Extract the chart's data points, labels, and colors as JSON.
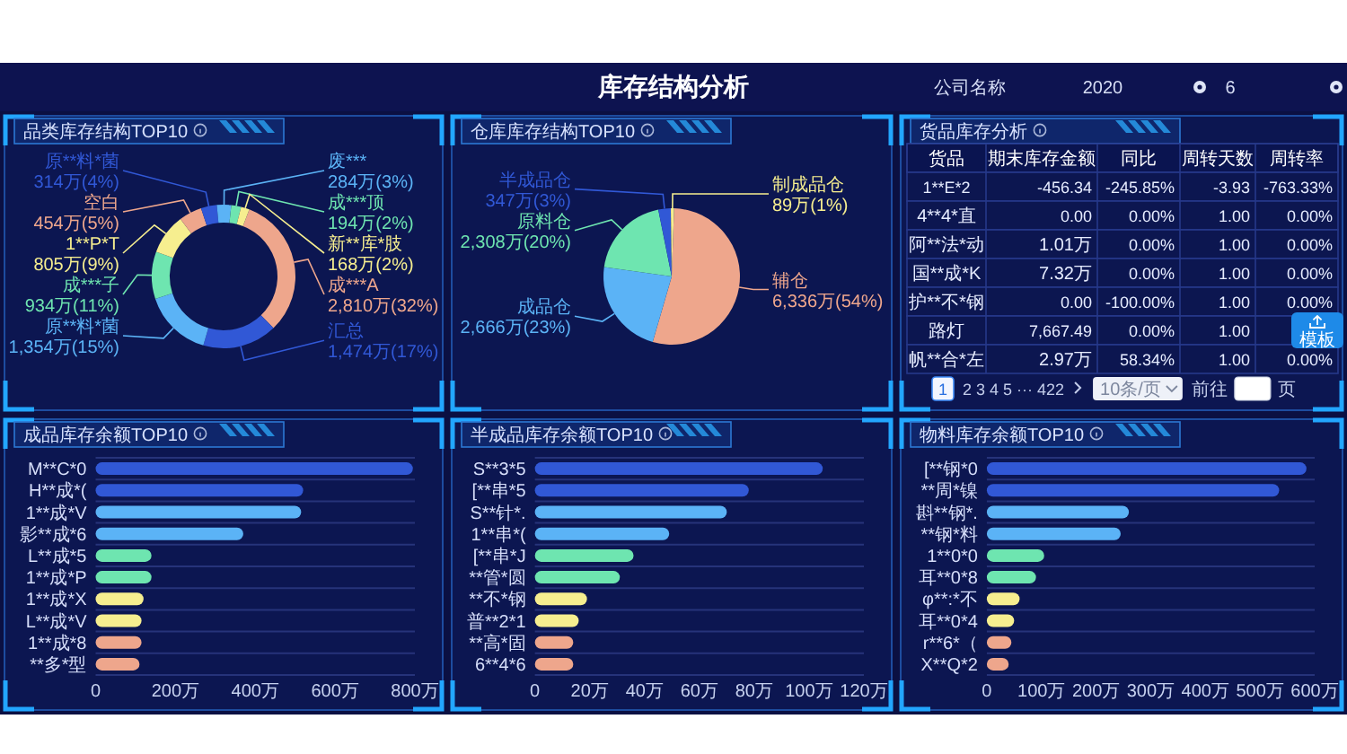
{
  "chart_data": [
    {
      "type": "other",
      "title": "库存结构分析",
      "annotations": [
        "公司名称",
        "2020",
        "6"
      ]
    },
    {
      "type": "donut",
      "title": "品类库存结构TOP10",
      "categories": [
        "成***A",
        "汇总",
        "原**料*菌",
        "成***子",
        "1**P*T",
        "空白",
        "原**料*菌",
        "废***",
        "成***顶",
        "新**库*肢"
      ],
      "values": [
        2810,
        1474,
        1354,
        934,
        805,
        454,
        314,
        284,
        194,
        168
      ],
      "colors": [
        "#eea68c",
        "#3158d6",
        "#5bb3f6",
        "#6ee5b0",
        "#f6ee8f",
        "#eea68c",
        "#3158d6",
        "#5bb3f6",
        "#6ee5b0",
        "#f6ee8f"
      ],
      "value_labels": [
        "2,810万(32%)",
        "1,474万(17%)",
        "1,354万(15%)",
        "934万(11%)",
        "805万(9%)",
        "454万(5%)",
        "314万(4%)",
        "284万(3%)",
        "194万(2%)",
        "168万(2%)"
      ]
    },
    {
      "type": "pie",
      "title": "仓库库存结构TOP10",
      "categories": [
        "辅仓",
        "成品仓",
        "原料仓",
        "半成品仓",
        "制成品仓"
      ],
      "values": [
        6336,
        2666,
        2308,
        347,
        89
      ],
      "colors": [
        "#eea68c",
        "#5bb3f6",
        "#6ee5b0",
        "#3158d6",
        "#f6ee8f"
      ],
      "value_labels": [
        "6,336万(54%)",
        "2,666万(23%)",
        "2,308万(20%)",
        "347万(3%)",
        "89万(1%)"
      ]
    },
    {
      "type": "other",
      "title": "货品库存分析",
      "categories": [
        "货品",
        "期末库存金额",
        "同比",
        "周转天数",
        "周转率"
      ],
      "cell_labels": [
        [
          "1**E*2",
          "-456.34",
          "-245.85%",
          "-3.93",
          "-763.33%"
        ],
        [
          "4**4*直",
          "0.00",
          "0.00%",
          "1.00",
          "0.00%"
        ],
        [
          "阿**法*动",
          "1.01万",
          "0.00%",
          "1.00",
          "0.00%"
        ],
        [
          "国**成*K",
          "7.32万",
          "0.00%",
          "1.00",
          "0.00%"
        ],
        [
          "护**不*钢",
          "0.00",
          "-100.00%",
          "1.00",
          "0.00%"
        ],
        [
          "路灯",
          "7,667.49",
          "0.00%",
          "1.00",
          null
        ],
        [
          "帆**合*左",
          "2.97万",
          "58.34%",
          "1.00",
          "0.00%"
        ]
      ],
      "annotations": [
        "1",
        "2 3 4 5 ··· 422",
        "10条/页",
        "前往",
        "页",
        "模板"
      ]
    },
    {
      "type": "bar",
      "orientation": "horizontal",
      "title": "成品库存余额TOP10",
      "categories": [
        "M**C*0",
        "H**成*(",
        "1**成*V",
        "影**成*6",
        "L**成*5",
        "1**成*P",
        "1**成*X",
        "L**成*V",
        "1**成*8",
        "**多*型"
      ],
      "values": [
        795,
        520,
        515,
        370,
        140,
        140,
        120,
        115,
        115,
        110
      ],
      "colors": [
        "#3158d6",
        "#3158d6",
        "#5bb3f6",
        "#5bb3f6",
        "#6ee5b0",
        "#6ee5b0",
        "#f6ee8f",
        "#f6ee8f",
        "#eea68c",
        "#eea68c"
      ],
      "xlim": [
        0,
        800
      ],
      "xticks": [
        {
          "value": 0,
          "label": "0"
        },
        {
          "value": 200,
          "label": "200万"
        },
        {
          "value": 400,
          "label": "400万"
        },
        {
          "value": 600,
          "label": "600万"
        },
        {
          "value": 800,
          "label": "800万"
        }
      ],
      "grid": "y"
    },
    {
      "type": "bar",
      "orientation": "horizontal",
      "title": "半成品库存余额TOP10",
      "categories": [
        "S**3*5",
        "[**串*5",
        "S**针*.",
        "1**串*(",
        "[**串*J",
        "**管*圆",
        "**不*钢",
        "普**2*1",
        "**高*固",
        "6**4*6"
      ],
      "values": [
        105,
        78,
        70,
        49,
        36,
        31,
        19,
        16,
        14,
        14
      ],
      "colors": [
        "#3158d6",
        "#3158d6",
        "#5bb3f6",
        "#5bb3f6",
        "#6ee5b0",
        "#6ee5b0",
        "#f6ee8f",
        "#f6ee8f",
        "#eea68c",
        "#eea68c"
      ],
      "xlim": [
        0,
        120
      ],
      "xticks": [
        {
          "value": 0,
          "label": "0"
        },
        {
          "value": 20,
          "label": "20万"
        },
        {
          "value": 40,
          "label": "40万"
        },
        {
          "value": 60,
          "label": "60万"
        },
        {
          "value": 80,
          "label": "80万"
        },
        {
          "value": 100,
          "label": "100万"
        },
        {
          "value": 120,
          "label": "120万"
        }
      ],
      "grid": "y"
    },
    {
      "type": "bar",
      "orientation": "horizontal",
      "title": "物料库存余额TOP10",
      "categories": [
        "[**钢*0",
        "**周*镍",
        "斟**钢*.",
        "**钢*料",
        "1**0*0",
        "耳**0*8",
        "φ**:*不",
        "耳**0*4",
        "r**6*（",
        "X**Q*2"
      ],
      "values": [
        585,
        535,
        260,
        245,
        105,
        90,
        60,
        50,
        45,
        40
      ],
      "colors": [
        "#3158d6",
        "#3158d6",
        "#5bb3f6",
        "#5bb3f6",
        "#6ee5b0",
        "#6ee5b0",
        "#f6ee8f",
        "#f6ee8f",
        "#eea68c",
        "#eea68c"
      ],
      "xlim": [
        0,
        600
      ],
      "xticks": [
        {
          "value": 0,
          "label": "0"
        },
        {
          "value": 100,
          "label": "100万"
        },
        {
          "value": 200,
          "label": "200万"
        },
        {
          "value": 300,
          "label": "300万"
        },
        {
          "value": 400,
          "label": "400万"
        },
        {
          "value": 500,
          "label": "500万"
        },
        {
          "value": 600,
          "label": "600万"
        }
      ],
      "grid": "y"
    }
  ]
}
